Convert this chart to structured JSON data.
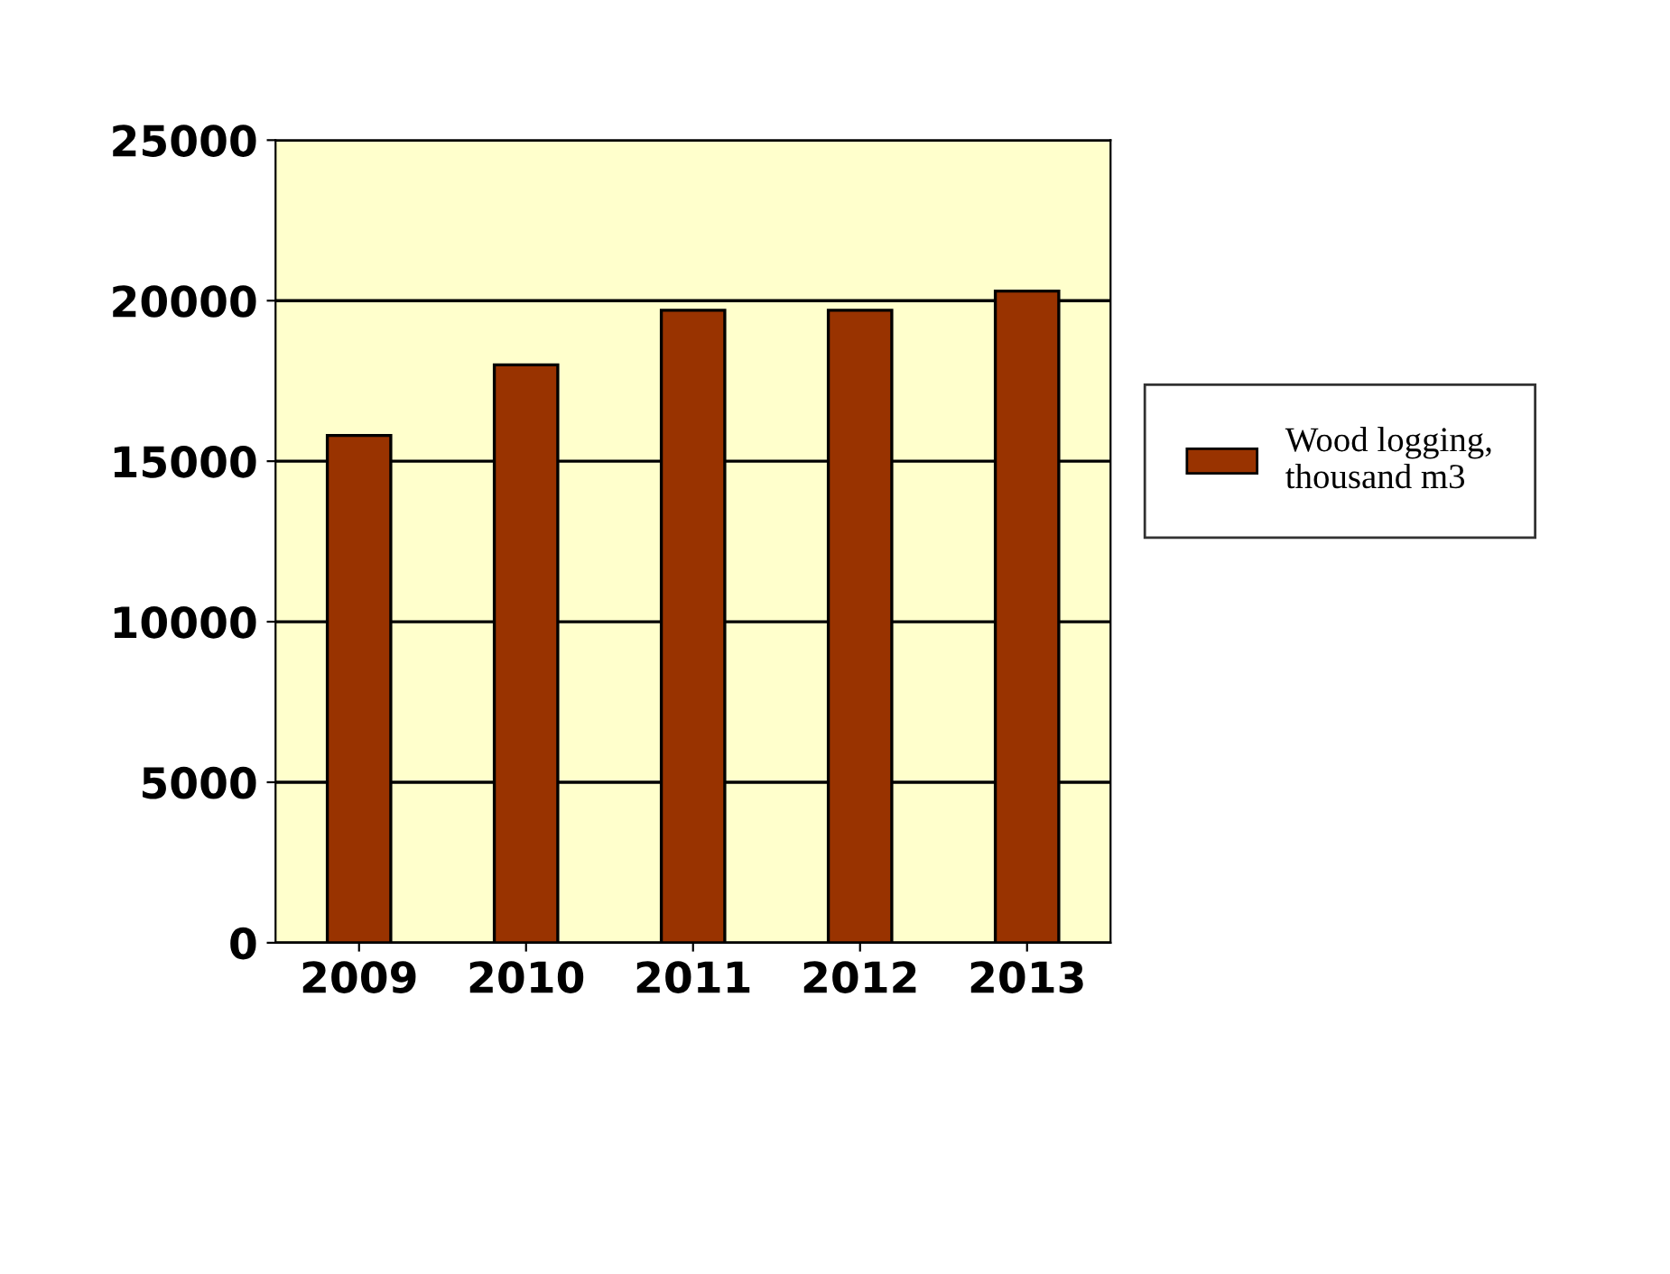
{
  "chart_data": {
    "type": "bar",
    "categories": [
      "2009",
      "2010",
      "2011",
      "2012",
      "2013"
    ],
    "series": [
      {
        "name": "Wood logging,\nthousand m3",
        "color": "#993300",
        "values": [
          15800,
          18000,
          19700,
          19700,
          20300
        ]
      }
    ],
    "ylim": [
      0,
      25000
    ],
    "yticks": [
      0,
      5000,
      10000,
      15000,
      20000,
      25000
    ],
    "grid": "y",
    "legend": "right"
  }
}
